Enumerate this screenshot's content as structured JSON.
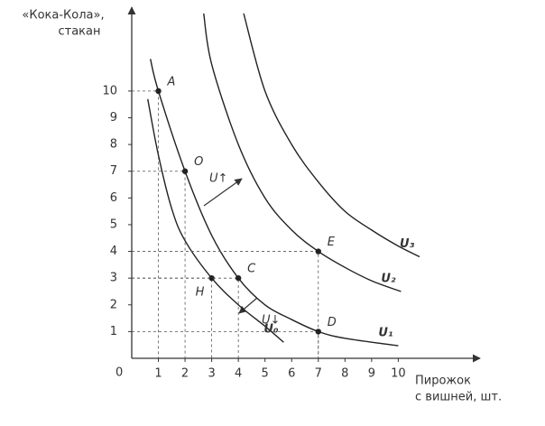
{
  "chart_data": {
    "type": "line",
    "ylabel": [
      "«Кока-Кола»,",
      "стакан"
    ],
    "xlabel": [
      "Пирожок",
      "с вишней, шт."
    ],
    "origin_label": "0",
    "xlim": [
      0,
      13
    ],
    "ylim": [
      0,
      12.9
    ],
    "xticks": [
      1,
      2,
      3,
      4,
      5,
      6,
      7,
      8,
      9,
      10
    ],
    "yticks": [
      1,
      2,
      3,
      4,
      5,
      6,
      7,
      8,
      9,
      10
    ],
    "series": [
      {
        "name": "U₀",
        "color": "#222",
        "x": [
          0.6,
          1,
          1.5,
          2,
          3,
          4,
          5,
          5.7
        ],
        "values": [
          9.7,
          7.6,
          5.6,
          4.4,
          3,
          2,
          1.2,
          0.6
        ]
      },
      {
        "name": "U₁",
        "color": "#222",
        "x": [
          0.7,
          1,
          2,
          3,
          4,
          5,
          6,
          7,
          8,
          10
        ],
        "values": [
          11.2,
          10,
          7,
          4.6,
          3,
          2,
          1.45,
          1,
          0.75,
          0.47
        ]
      },
      {
        "name": "U₂",
        "color": "#222",
        "x": [
          2.7,
          3,
          4,
          5,
          6,
          7,
          8,
          9,
          10.1
        ],
        "values": [
          12.9,
          11,
          8,
          6,
          4.8,
          4,
          3.4,
          2.9,
          2.5
        ]
      },
      {
        "name": "U₃",
        "color": "#222",
        "x": [
          4.2,
          5,
          6,
          7,
          8,
          9,
          10,
          10.8
        ],
        "values": [
          12.9,
          10,
          8,
          6.6,
          5.5,
          4.8,
          4.2,
          3.8
        ]
      }
    ],
    "points": [
      {
        "label": "A",
        "x": 1,
        "y": 10
      },
      {
        "label": "O",
        "x": 2,
        "y": 7
      },
      {
        "label": "H",
        "x": 3,
        "y": 3
      },
      {
        "label": "C",
        "x": 4,
        "y": 3
      },
      {
        "label": "E",
        "x": 7,
        "y": 4
      },
      {
        "label": "D",
        "x": 7,
        "y": 1
      }
    ],
    "annotations": [
      "U↑",
      "U↓"
    ]
  }
}
